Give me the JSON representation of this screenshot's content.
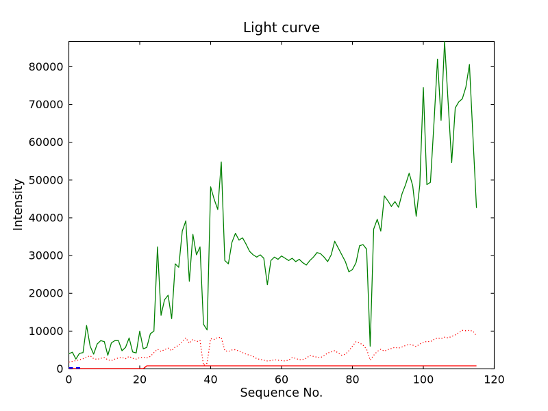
{
  "figure": {
    "title": "Light curve",
    "xlabel": "Sequence No.",
    "ylabel": "Intensity",
    "background_color": "#ffffff",
    "axes_color": "#000000"
  },
  "chart_data": {
    "type": "line",
    "title": "Light curve",
    "xlabel": "Sequence No.",
    "ylabel": "Intensity",
    "xlim": [
      0,
      120
    ],
    "ylim": [
      0,
      86700
    ],
    "x_ticks": [
      0,
      20,
      40,
      60,
      80,
      100,
      120
    ],
    "x_tick_labels": [
      "0",
      "20",
      "40",
      "60",
      "80",
      "100",
      "120"
    ],
    "y_ticks": [
      0,
      10000,
      20000,
      30000,
      40000,
      50000,
      60000,
      70000,
      80000
    ],
    "y_tick_labels": [
      "0",
      "10000",
      "20000",
      "30000",
      "40000",
      "50000",
      "60000",
      "70000",
      "80000"
    ],
    "grid": false,
    "legend": null,
    "tick_style": {
      "direction": "in",
      "length": 5,
      "sides": [
        "top",
        "bottom",
        "left",
        "right"
      ]
    },
    "series": [
      {
        "name": "green-line",
        "color": "#008000",
        "style": "solid",
        "line_width": 1.3,
        "x_start": 0,
        "x_step": 1,
        "values": [
          4000,
          4400,
          2600,
          4100,
          4300,
          11500,
          6000,
          3900,
          6600,
          7500,
          7200,
          3600,
          6900,
          7500,
          7500,
          4800,
          5700,
          8200,
          4500,
          4200,
          10000,
          5300,
          5700,
          9300,
          10000,
          32300,
          14200,
          18300,
          19500,
          13300,
          27800,
          26900,
          36500,
          39200,
          23200,
          35600,
          30200,
          32300,
          11800,
          10300,
          48200,
          44900,
          42200,
          54800,
          28700,
          27800,
          33500,
          35900,
          34100,
          34700,
          33000,
          31100,
          30200,
          29600,
          30200,
          29300,
          22300,
          28700,
          29600,
          29000,
          29900,
          29300,
          28700,
          29300,
          28400,
          29000,
          28100,
          27500,
          28700,
          29600,
          30800,
          30500,
          29600,
          28400,
          30200,
          33800,
          32000,
          30200,
          28400,
          25700,
          26300,
          28100,
          32600,
          32900,
          31700,
          6000,
          37000,
          39600,
          36500,
          45800,
          44500,
          43000,
          44300,
          42800,
          46400,
          48800,
          51800,
          48500,
          40400,
          48600,
          74500,
          48800,
          49400,
          65000,
          82000,
          65800,
          86700,
          70600,
          54600,
          69100,
          70700,
          71500,
          74600,
          80600,
          61600,
          42600
        ]
      },
      {
        "name": "red-dotted-line",
        "color": "#ff0000",
        "style": "dotted",
        "line_width": 1.3,
        "x_start": 0,
        "x_step": 1,
        "values": [
          1800,
          2000,
          2200,
          2400,
          2700,
          3100,
          3500,
          2700,
          2500,
          2800,
          3000,
          2400,
          2200,
          2600,
          2900,
          3000,
          2700,
          3300,
          2800,
          2600,
          3000,
          3100,
          2900,
          3300,
          4300,
          5200,
          4600,
          5100,
          5500,
          4800,
          5800,
          6200,
          7300,
          8200,
          6800,
          7800,
          7200,
          7500,
          900,
          1500,
          8000,
          7800,
          8300,
          8300,
          4800,
          4600,
          5000,
          5100,
          4700,
          4300,
          3900,
          3600,
          3300,
          2700,
          2500,
          2300,
          2100,
          2200,
          2400,
          2300,
          2200,
          2100,
          2300,
          3000,
          2800,
          2400,
          2500,
          2800,
          3600,
          3300,
          3100,
          3000,
          3500,
          4200,
          4500,
          4800,
          4200,
          3600,
          3900,
          4800,
          6000,
          7200,
          6900,
          6300,
          5200,
          2300,
          3600,
          4600,
          5200,
          4700,
          5100,
          5400,
          5700,
          5500,
          5800,
          6200,
          6500,
          6300,
          5900,
          6600,
          7000,
          7300,
          7200,
          7800,
          8200,
          8000,
          8400,
          8200,
          8600,
          9000,
          9600,
          10200,
          10100,
          10200,
          10000,
          8700
        ]
      },
      {
        "name": "red-solid-line",
        "color": "#ff0000",
        "style": "solid",
        "line_width": 1.4,
        "points": [
          [
            0,
            60
          ],
          [
            21,
            60
          ],
          [
            22,
            800
          ],
          [
            115,
            800
          ]
        ]
      },
      {
        "name": "blue-dashed-line",
        "color": "#0000ff",
        "style": "dashed",
        "line_width": 2.2,
        "points": [
          [
            0,
            250
          ],
          [
            4,
            250
          ]
        ]
      }
    ]
  }
}
